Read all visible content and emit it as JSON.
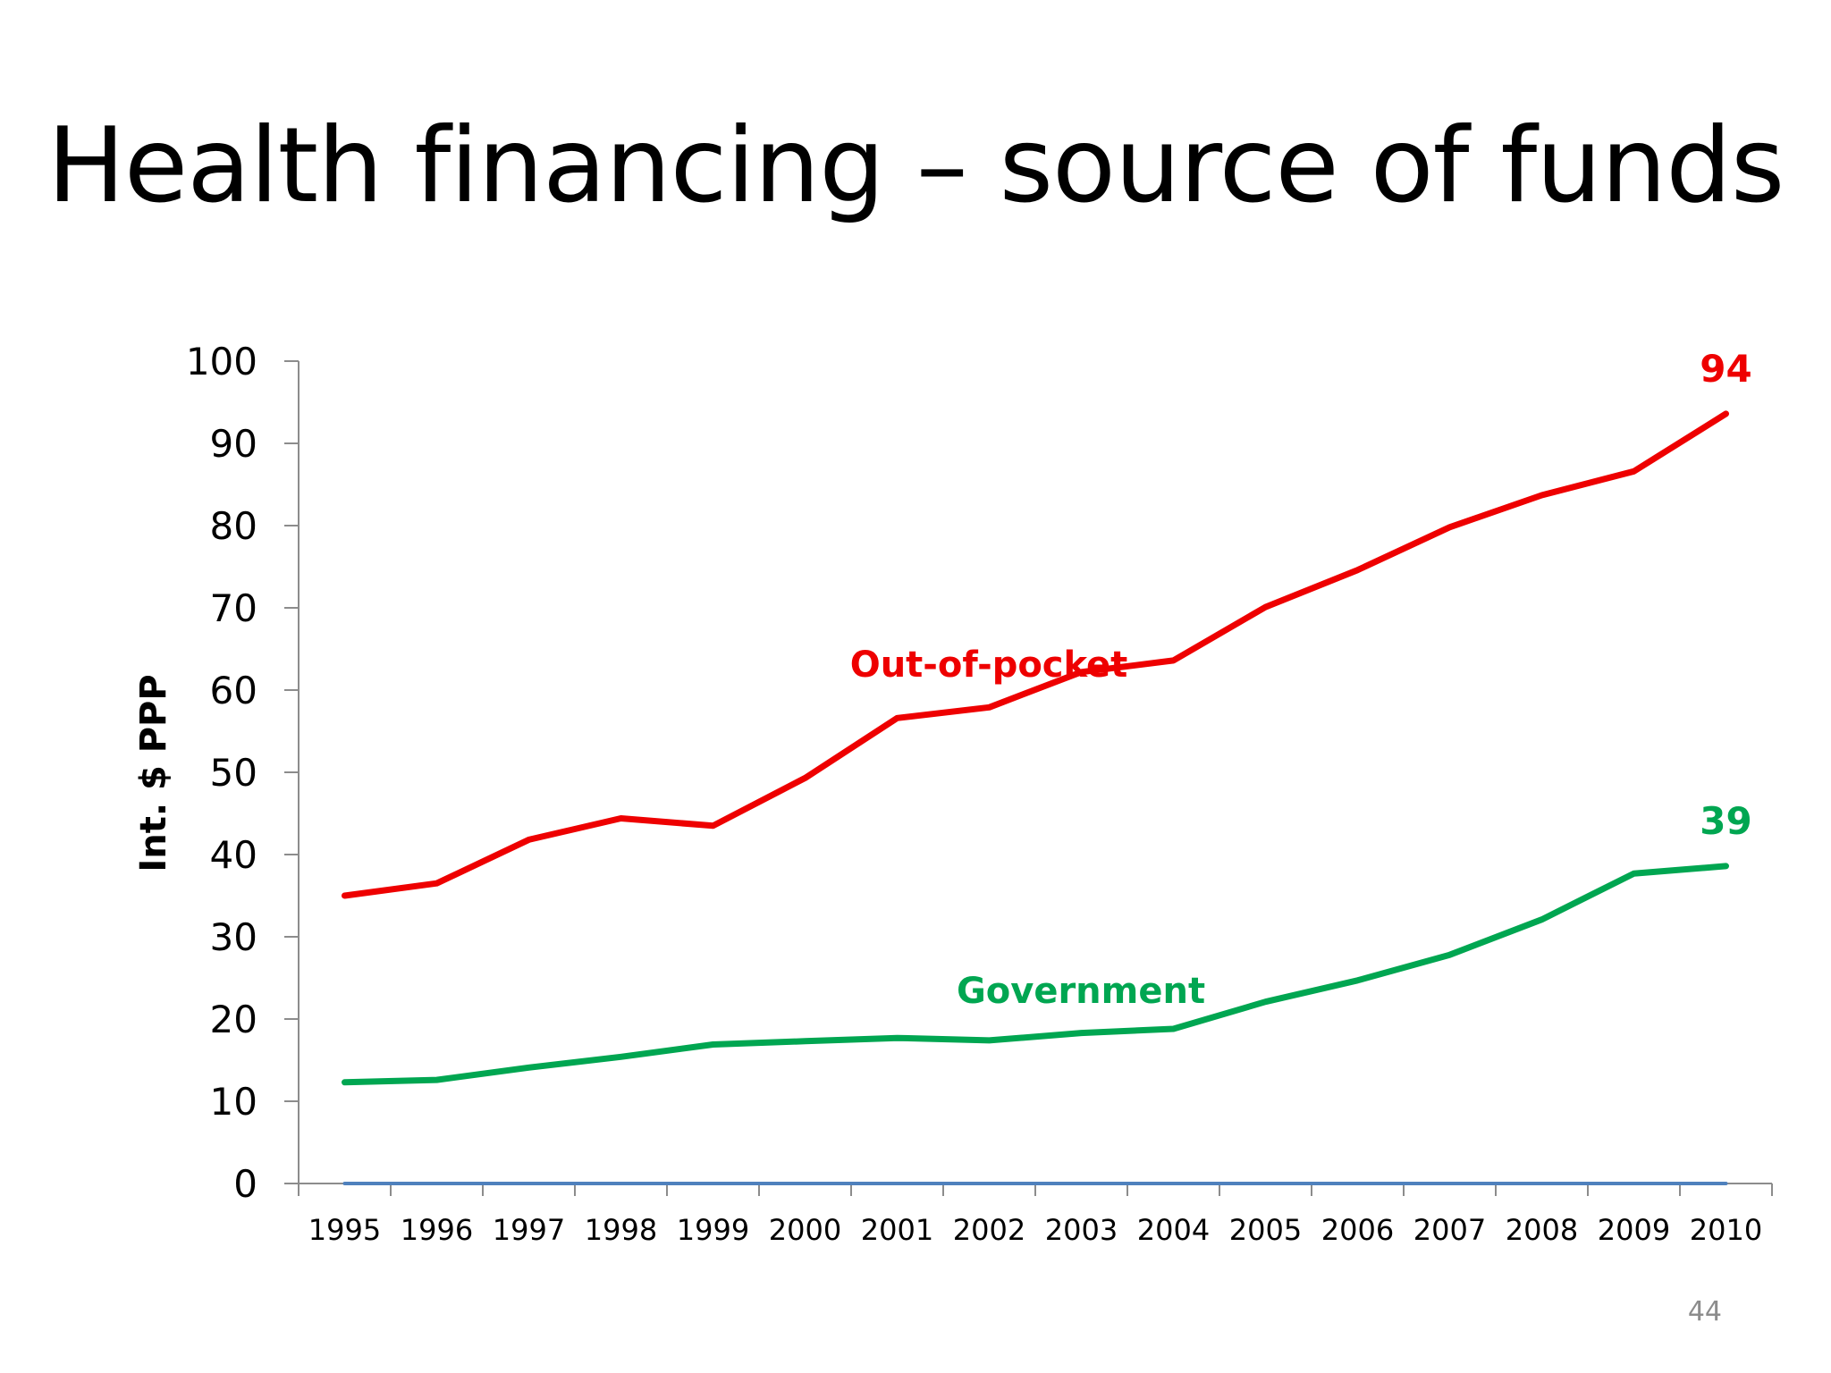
{
  "slide": {
    "title": "Health financing – source of funds",
    "page_number": "44"
  },
  "colors": {
    "out_of_pocket": "#ee0000",
    "government": "#00a651",
    "baseline": "#4f81bd",
    "axis": "#8c8c8c"
  },
  "chart_data": {
    "type": "line",
    "ylabel": "Int. $ PPP",
    "ylim": [
      0,
      100
    ],
    "yticks": [
      0,
      10,
      20,
      30,
      40,
      50,
      60,
      70,
      80,
      90,
      100
    ],
    "categories": [
      "1995",
      "1996",
      "1997",
      "1998",
      "1999",
      "2000",
      "2001",
      "2002",
      "2003",
      "2004",
      "2005",
      "2006",
      "2007",
      "2008",
      "2009",
      "2010"
    ],
    "series": [
      {
        "name": "Out-of-pocket",
        "color": "#ee0000",
        "values": [
          35,
          36.5,
          41.8,
          44.4,
          43.5,
          49.3,
          56.6,
          57.9,
          62.2,
          63.6,
          70.1,
          74.6,
          79.8,
          83.7,
          86.6,
          93.6
        ],
        "end_label": "94"
      },
      {
        "name": "Government",
        "color": "#00a651",
        "values": [
          12.3,
          12.6,
          14.1,
          15.4,
          16.9,
          17.3,
          17.7,
          17.4,
          18.3,
          18.8,
          22.1,
          24.7,
          27.8,
          32.1,
          37.7,
          38.6
        ],
        "end_label": "39"
      },
      {
        "name": "",
        "color": "#4f81bd",
        "values": [
          0,
          0,
          0,
          0,
          0,
          0,
          0,
          0,
          0,
          0,
          0,
          0,
          0,
          0,
          0,
          0
        ]
      }
    ]
  }
}
